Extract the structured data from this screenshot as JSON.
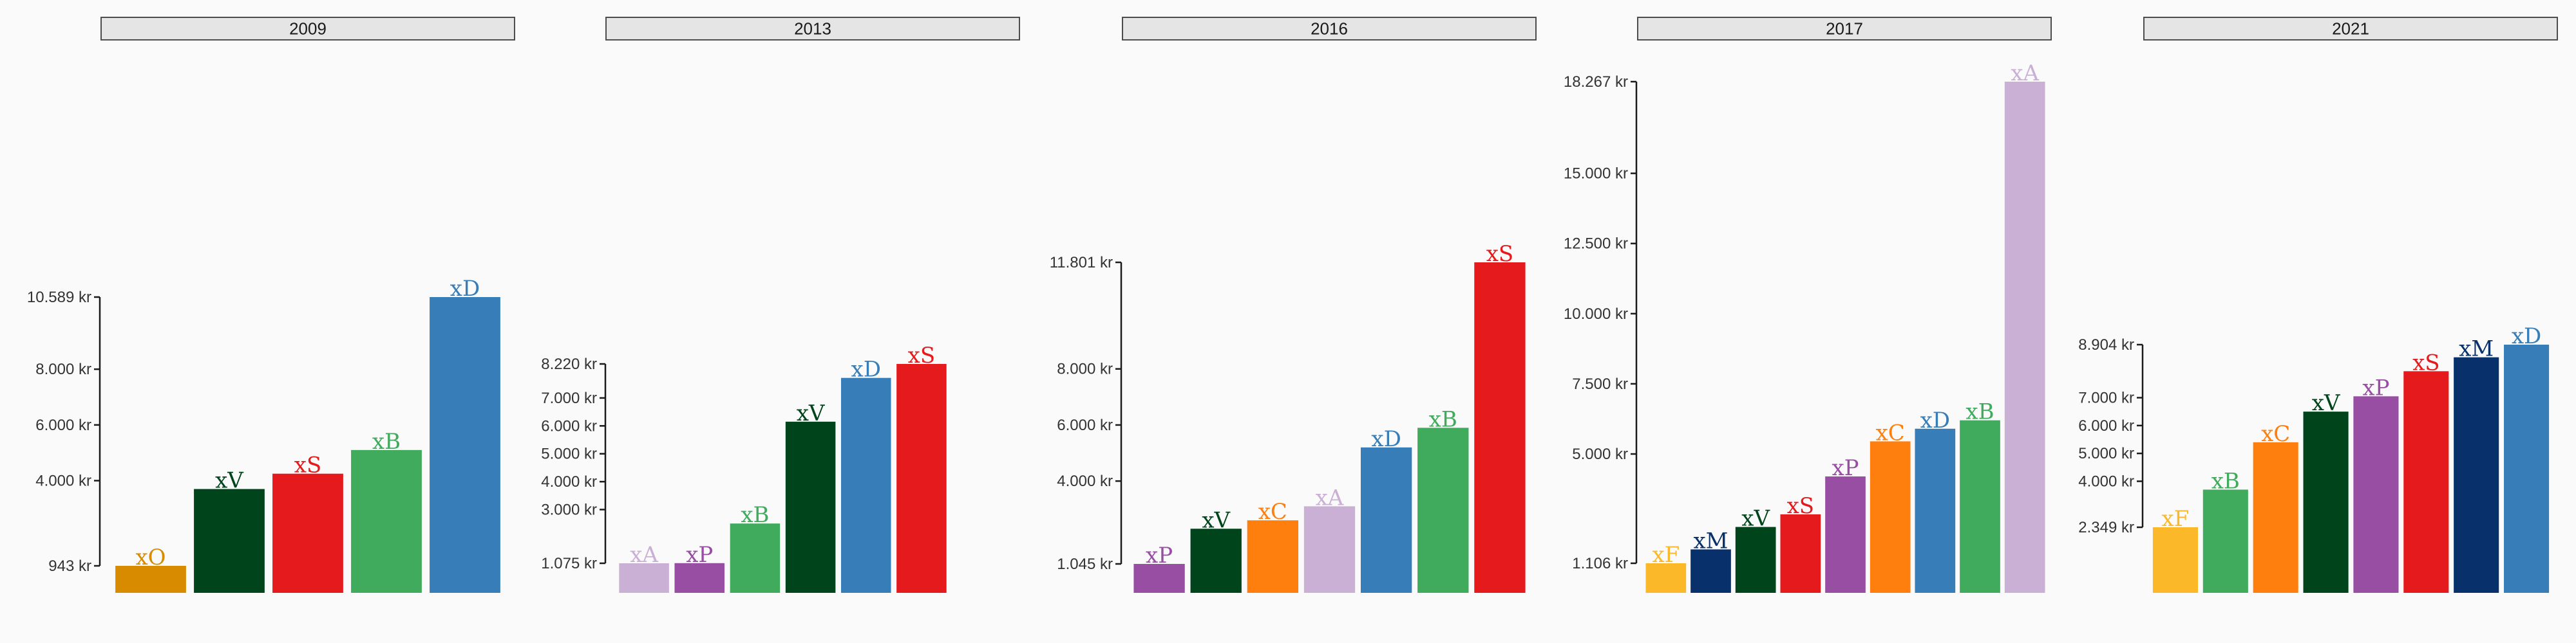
{
  "chart_data": [
    {
      "type": "bar",
      "title": "2009",
      "ylim": [
        943,
        10589
      ],
      "yticks": [
        943,
        4000,
        6000,
        8000,
        10589
      ],
      "ytick_labels": [
        "943 kr",
        "4.000 kr",
        "6.000 kr",
        "8.000 kr",
        "10.589 kr"
      ],
      "categories": [
        "xO",
        "xV",
        "xS",
        "xB",
        "xD"
      ],
      "values": [
        943,
        3700,
        4250,
        5100,
        10589
      ],
      "colors": [
        "#d98b00",
        "#00441b",
        "#e41a1c",
        "#41ab5d",
        "#377eb8"
      ]
    },
    {
      "type": "bar",
      "title": "2013",
      "ylim": [
        1075,
        8220
      ],
      "yticks": [
        1075,
        3000,
        4000,
        5000,
        6000,
        7000,
        8220
      ],
      "ytick_labels": [
        "1.075 kr",
        "3.000 kr",
        "4.000 kr",
        "5.000 kr",
        "6.000 kr",
        "7.000 kr",
        "8.220 kr"
      ],
      "categories": [
        "xA",
        "xP",
        "xB",
        "xV",
        "xD",
        "xS"
      ],
      "values": [
        1075,
        1080,
        2500,
        6150,
        7720,
        8220
      ],
      "colors": [
        "#cbb0d6",
        "#984ea3",
        "#41ab5d",
        "#00441b",
        "#377eb8",
        "#e41a1c"
      ]
    },
    {
      "type": "bar",
      "title": "2016",
      "ylim": [
        1045,
        11801
      ],
      "yticks": [
        1045,
        4000,
        6000,
        8000,
        11801
      ],
      "ytick_labels": [
        "1.045 kr",
        "4.000 kr",
        "6.000 kr",
        "8.000 kr",
        "11.801 kr"
      ],
      "categories": [
        "xP",
        "xV",
        "xC",
        "xA",
        "xD",
        "xB",
        "xS"
      ],
      "values": [
        1045,
        2300,
        2600,
        3100,
        5200,
        5900,
        11801
      ],
      "colors": [
        "#984ea3",
        "#00441b",
        "#ff7f0e",
        "#cbb0d6",
        "#377eb8",
        "#41ab5d",
        "#e41a1c"
      ]
    },
    {
      "type": "bar",
      "title": "2017",
      "ylim": [
        1106,
        18267
      ],
      "yticks": [
        1106,
        5000,
        7500,
        10000,
        12500,
        15000,
        18267
      ],
      "ytick_labels": [
        "1.106 kr",
        "5.000 kr",
        "7.500 kr",
        "10.000 kr",
        "12.500 kr",
        "15.000 kr",
        "18.267 kr"
      ],
      "categories": [
        "xF",
        "xM",
        "xV",
        "xS",
        "xP",
        "xC",
        "xD",
        "xB",
        "xA"
      ],
      "values": [
        1106,
        1600,
        2400,
        2850,
        4200,
        5450,
        5900,
        6200,
        18267
      ],
      "colors": [
        "#fbb829",
        "#08306b",
        "#00441b",
        "#e41a1c",
        "#984ea3",
        "#ff7f0e",
        "#377eb8",
        "#41ab5d",
        "#cbb0d6"
      ]
    },
    {
      "type": "bar",
      "title": "2021",
      "ylim": [
        2349,
        8904
      ],
      "yticks": [
        2349,
        4000,
        5000,
        6000,
        7000,
        8904
      ],
      "ytick_labels": [
        "2.349 kr",
        "4.000 kr",
        "5.000 kr",
        "6.000 kr",
        "7.000 kr",
        "8.904 kr"
      ],
      "categories": [
        "xF",
        "xB",
        "xC",
        "xV",
        "xP",
        "xS",
        "xM",
        "xD"
      ],
      "values": [
        2349,
        3700,
        5400,
        6500,
        7050,
        7950,
        8450,
        8904
      ],
      "colors": [
        "#fbb829",
        "#41ab5d",
        "#ff7f0e",
        "#00441b",
        "#984ea3",
        "#e41a1c",
        "#08306b",
        "#377eb8"
      ]
    }
  ]
}
